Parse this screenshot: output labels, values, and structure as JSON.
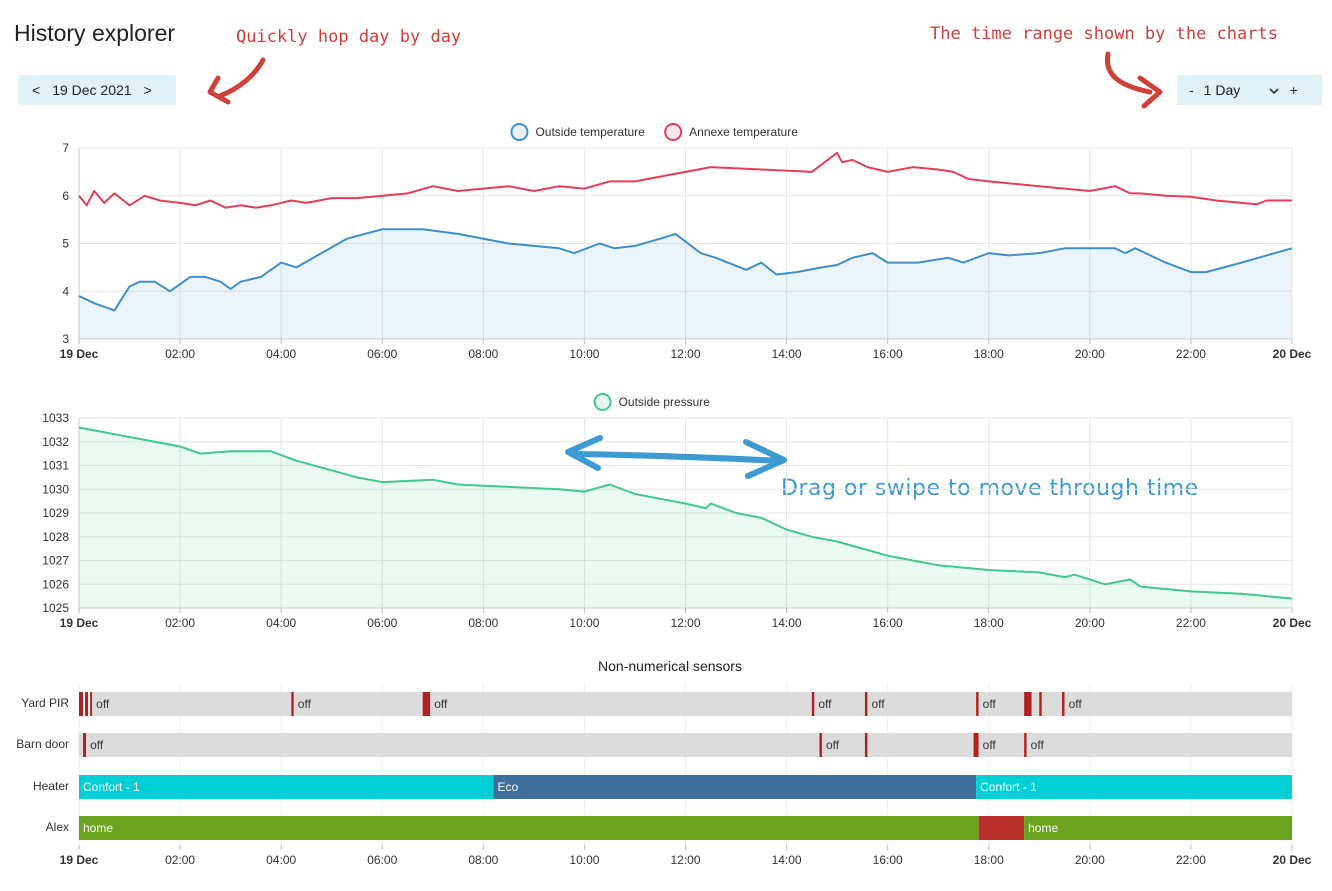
{
  "page": {
    "title": "History explorer",
    "annotations": {
      "hop": "Quickly hop day by day",
      "range": "The time range shown by the charts",
      "drag": "Drag or swipe to move through time"
    }
  },
  "date_nav": {
    "prev": "<",
    "date": "19 Dec 2021",
    "next": ">"
  },
  "range_ctrl": {
    "minus": "-",
    "value": "1 Day",
    "plus": "+"
  },
  "colors": {
    "outside_temp": "#3e8fc9",
    "annexe_temp": "#e33d5a",
    "pressure": "#3fc98d",
    "grid": "#e6e6e6",
    "off_bar": "#dcdcdc",
    "pir_on": "#b02020",
    "confort": "#00d0d6",
    "eco": "#3f6f9a",
    "home": "#6aa41e",
    "away": "#b82e2a",
    "arrow": "#3e9ad2",
    "annot": "#d0403a"
  },
  "x_axis": {
    "ticks": [
      "19 Dec",
      "02:00",
      "04:00",
      "06:00",
      "08:00",
      "10:00",
      "12:00",
      "14:00",
      "16:00",
      "18:00",
      "20:00",
      "22:00",
      "20 Dec"
    ]
  },
  "chart_data": [
    {
      "type": "line",
      "title": "",
      "ylim": [
        3,
        7
      ],
      "yticks": [
        "7",
        "6",
        "5",
        "4",
        "3"
      ],
      "x_unit": "hours since 19 Dec 00:00",
      "series": [
        {
          "name": "Outside temperature",
          "x": [
            0,
            0.3,
            0.7,
            1.0,
            1.2,
            1.5,
            1.8,
            2.2,
            2.5,
            2.8,
            3.0,
            3.2,
            3.6,
            4.0,
            4.3,
            4.8,
            5.3,
            6.0,
            6.8,
            7.5,
            8.5,
            9.5,
            9.8,
            10.3,
            10.6,
            11.0,
            11.5,
            11.8,
            12.3,
            12.6,
            13.2,
            13.5,
            13.8,
            14.2,
            14.7,
            15.0,
            15.3,
            15.7,
            16.0,
            16.6,
            17.2,
            17.5,
            18.0,
            18.4,
            19.0,
            19.5,
            20.0,
            20.5,
            20.7,
            20.9,
            21.5,
            22.0,
            22.3,
            23.0,
            23.5,
            24.0
          ],
          "values": [
            3.9,
            3.75,
            3.6,
            4.1,
            4.2,
            4.2,
            4.0,
            4.3,
            4.3,
            4.2,
            4.05,
            4.2,
            4.3,
            4.6,
            4.5,
            4.8,
            5.1,
            5.3,
            5.3,
            5.2,
            5.0,
            4.9,
            4.8,
            5.0,
            4.9,
            4.95,
            5.1,
            5.2,
            4.8,
            4.7,
            4.45,
            4.6,
            4.35,
            4.4,
            4.5,
            4.55,
            4.7,
            4.8,
            4.6,
            4.6,
            4.7,
            4.6,
            4.8,
            4.75,
            4.8,
            4.9,
            4.9,
            4.9,
            4.8,
            4.9,
            4.6,
            4.4,
            4.4,
            4.6,
            4.75,
            4.9
          ]
        },
        {
          "name": "Annexe temperature",
          "x": [
            0,
            0.15,
            0.3,
            0.5,
            0.7,
            1.0,
            1.3,
            1.6,
            2.0,
            2.3,
            2.6,
            2.9,
            3.2,
            3.5,
            3.8,
            4.2,
            4.5,
            5.0,
            5.5,
            6.0,
            6.5,
            7.0,
            7.5,
            8.0,
            8.5,
            9.0,
            9.5,
            10.0,
            10.5,
            11.0,
            11.5,
            12.0,
            12.5,
            13.5,
            14.5,
            15.0,
            15.1,
            15.3,
            15.6,
            16.0,
            16.5,
            17.0,
            17.3,
            17.6,
            18.0,
            19.0,
            20.0,
            20.5,
            20.8,
            21.0,
            21.5,
            22.0,
            22.5,
            23.0,
            23.3,
            23.5,
            24.0
          ],
          "values": [
            6.0,
            5.8,
            6.1,
            5.85,
            6.05,
            5.8,
            6.0,
            5.9,
            5.85,
            5.8,
            5.9,
            5.75,
            5.8,
            5.75,
            5.8,
            5.9,
            5.85,
            5.95,
            5.95,
            6.0,
            6.05,
            6.2,
            6.1,
            6.15,
            6.2,
            6.1,
            6.2,
            6.15,
            6.3,
            6.3,
            6.4,
            6.5,
            6.6,
            6.55,
            6.5,
            6.9,
            6.7,
            6.75,
            6.6,
            6.5,
            6.6,
            6.55,
            6.5,
            6.35,
            6.3,
            6.2,
            6.1,
            6.2,
            6.05,
            6.05,
            6.0,
            5.98,
            5.9,
            5.85,
            5.82,
            5.9,
            5.9
          ]
        }
      ]
    },
    {
      "type": "area",
      "title": "",
      "ylim": [
        1025,
        1033
      ],
      "yticks": [
        "1033",
        "1032",
        "1031",
        "1030",
        "1029",
        "1028",
        "1027",
        "1026",
        "1025"
      ],
      "x_unit": "hours since 19 Dec 00:00",
      "series": [
        {
          "name": "Outside pressure",
          "x": [
            0,
            1.0,
            2.0,
            2.4,
            3.0,
            3.8,
            4.3,
            5.0,
            5.5,
            6.0,
            7.0,
            7.5,
            8.5,
            9.5,
            10.0,
            10.5,
            11.0,
            11.5,
            12.0,
            12.4,
            12.5,
            13.0,
            13.5,
            14.0,
            14.5,
            15.0,
            15.5,
            16.0,
            17.0,
            18.0,
            19.0,
            19.5,
            19.7,
            20.3,
            20.8,
            21.0,
            22.0,
            23.0,
            24.0
          ],
          "values": [
            1032.6,
            1032.2,
            1031.8,
            1031.5,
            1031.6,
            1031.6,
            1031.2,
            1030.8,
            1030.5,
            1030.3,
            1030.4,
            1030.2,
            1030.1,
            1030.0,
            1029.9,
            1030.2,
            1029.8,
            1029.6,
            1029.4,
            1029.2,
            1029.4,
            1029.0,
            1028.8,
            1028.3,
            1028.0,
            1027.8,
            1027.5,
            1027.2,
            1026.8,
            1026.6,
            1026.5,
            1026.3,
            1026.4,
            1026.0,
            1026.2,
            1025.9,
            1025.7,
            1025.6,
            1025.4
          ]
        }
      ]
    }
  ],
  "timeline": {
    "title": "Non-numerical sensors",
    "rows": [
      {
        "label": "Yard PIR",
        "segments": [
          {
            "start": 0.0,
            "end": 0.08,
            "state": "on"
          },
          {
            "start": 0.12,
            "end": 0.18,
            "state": "on"
          },
          {
            "start": 0.22,
            "end": 0.26,
            "state": "on"
          },
          {
            "start": 0.26,
            "end": 4.2,
            "state": "off",
            "label": "off"
          },
          {
            "start": 4.2,
            "end": 4.25,
            "state": "on"
          },
          {
            "start": 4.25,
            "end": 6.8,
            "state": "off",
            "label": "off"
          },
          {
            "start": 6.8,
            "end": 6.95,
            "state": "on"
          },
          {
            "start": 6.95,
            "end": 14.5,
            "state": "off",
            "label": "off"
          },
          {
            "start": 14.5,
            "end": 14.55,
            "state": "on"
          },
          {
            "start": 14.55,
            "end": 15.55,
            "state": "off",
            "label": "off"
          },
          {
            "start": 15.55,
            "end": 15.6,
            "state": "on"
          },
          {
            "start": 15.6,
            "end": 17.75,
            "state": "off",
            "label": "off"
          },
          {
            "start": 17.75,
            "end": 17.8,
            "state": "on"
          },
          {
            "start": 17.8,
            "end": 18.7,
            "state": "off",
            "label": "off"
          },
          {
            "start": 18.7,
            "end": 18.85,
            "state": "on"
          },
          {
            "start": 18.85,
            "end": 19.0,
            "state": "off"
          },
          {
            "start": 19.0,
            "end": 19.05,
            "state": "on"
          },
          {
            "start": 19.05,
            "end": 19.45,
            "state": "off"
          },
          {
            "start": 19.45,
            "end": 19.5,
            "state": "on"
          },
          {
            "start": 19.5,
            "end": 24.0,
            "state": "off",
            "label": "off"
          }
        ]
      },
      {
        "label": "Barn door",
        "segments": [
          {
            "start": 0.0,
            "end": 0.08,
            "state": "off"
          },
          {
            "start": 0.08,
            "end": 0.14,
            "state": "on"
          },
          {
            "start": 0.14,
            "end": 14.65,
            "state": "off",
            "label": "off"
          },
          {
            "start": 14.65,
            "end": 14.7,
            "state": "on"
          },
          {
            "start": 14.7,
            "end": 15.55,
            "state": "off",
            "label": "off"
          },
          {
            "start": 15.55,
            "end": 15.6,
            "state": "on"
          },
          {
            "start": 15.6,
            "end": 17.7,
            "state": "off"
          },
          {
            "start": 17.7,
            "end": 17.8,
            "state": "on"
          },
          {
            "start": 17.8,
            "end": 18.7,
            "state": "off",
            "label": "off"
          },
          {
            "start": 18.7,
            "end": 18.75,
            "state": "on"
          },
          {
            "start": 18.75,
            "end": 24.0,
            "state": "off",
            "label": "off"
          }
        ]
      },
      {
        "label": "Heater",
        "segments": [
          {
            "start": 0.0,
            "end": 8.2,
            "state": "confort",
            "label": "Confort - 1"
          },
          {
            "start": 8.2,
            "end": 17.75,
            "state": "eco",
            "label": "Eco"
          },
          {
            "start": 17.75,
            "end": 24.0,
            "state": "confort",
            "label": "Confort - 1"
          }
        ]
      },
      {
        "label": "Alex",
        "segments": [
          {
            "start": 0.0,
            "end": 17.8,
            "state": "home",
            "label": "home"
          },
          {
            "start": 17.8,
            "end": 18.7,
            "state": "away"
          },
          {
            "start": 18.7,
            "end": 24.0,
            "state": "home",
            "label": "home"
          }
        ]
      }
    ]
  }
}
